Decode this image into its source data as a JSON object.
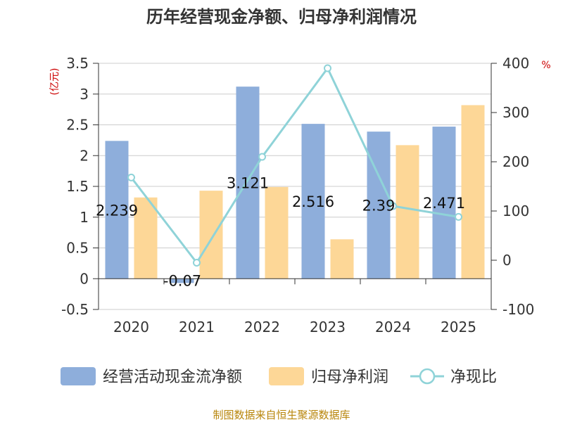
{
  "chart_data": {
    "type": "bar",
    "title": "历年经营现金净额、归母净利润情况",
    "categories": [
      "2020",
      "2021",
      "2022",
      "2023",
      "2024",
      "2025"
    ],
    "series": [
      {
        "name": "经营活动现金流净额",
        "type": "bar",
        "axis": "left",
        "color": "#8eaedb",
        "values": [
          2.239,
          -0.07,
          3.121,
          2.516,
          2.39,
          2.471
        ],
        "labels": [
          "2.239",
          "-0.07",
          "3.121",
          "2.516",
          "2.39",
          "2.471"
        ]
      },
      {
        "name": "归母净利润",
        "type": "bar",
        "axis": "left",
        "color": "#fdd797",
        "values": [
          1.32,
          1.43,
          1.49,
          0.64,
          2.17,
          2.82
        ]
      },
      {
        "name": "净现比",
        "type": "line",
        "axis": "right",
        "color": "#8fd3d8",
        "values": [
          168,
          -5,
          210,
          390,
          110,
          88
        ]
      }
    ],
    "y_left": {
      "unit": "(亿元)",
      "ylim": [
        -0.5,
        3.5
      ],
      "ticks": [
        "3.5",
        "3",
        "2.5",
        "2",
        "1.5",
        "1",
        "0.5",
        "0",
        "-0.5"
      ],
      "tick_values": [
        3.5,
        3,
        2.5,
        2,
        1.5,
        1,
        0.5,
        0,
        -0.5
      ]
    },
    "y_right": {
      "unit": "%",
      "ylim": [
        -100,
        400
      ],
      "ticks": [
        "400",
        "300",
        "200",
        "100",
        "0",
        "-100"
      ],
      "tick_values": [
        400,
        300,
        200,
        100,
        0,
        -100
      ]
    },
    "source": "制图数据来自恒生聚源数据库"
  }
}
